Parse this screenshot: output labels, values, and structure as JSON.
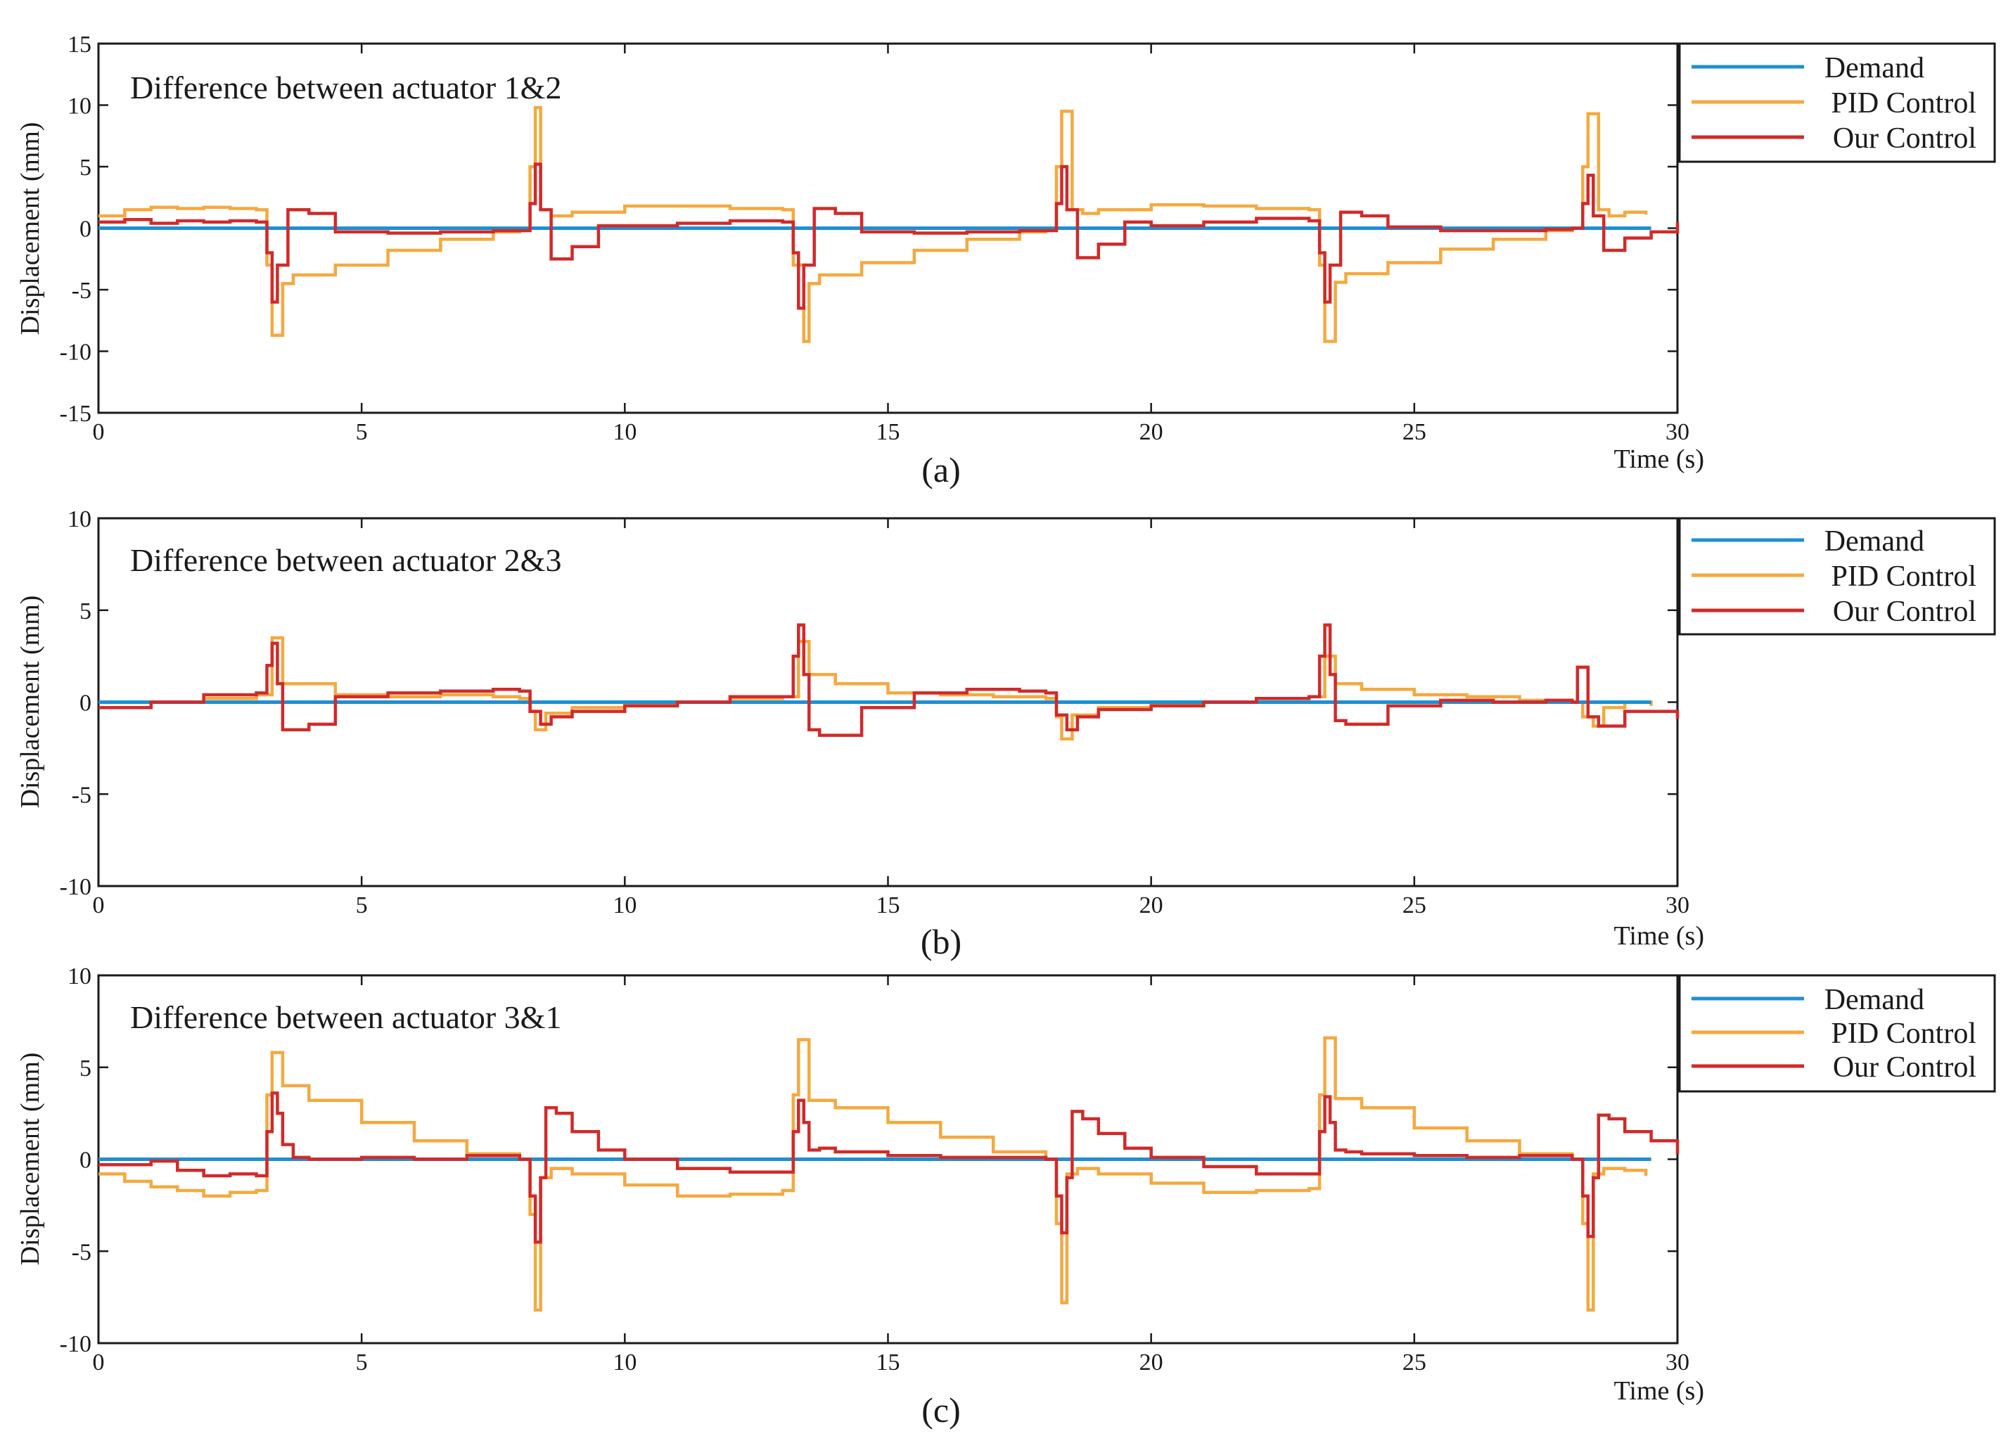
{
  "chart_data": [
    {
      "type": "line",
      "panel_label": "(a)",
      "title": "Difference between actuator 1&2",
      "xlabel": "Time (s)",
      "ylabel": "Displacement (mm)",
      "xlim": [
        0,
        30
      ],
      "ylim": [
        -15,
        15
      ],
      "xticks": [
        0,
        5,
        10,
        15,
        20,
        25,
        30
      ],
      "yticks": [
        -15,
        -10,
        -5,
        0,
        5,
        10,
        15
      ],
      "legend": [
        "Demand",
        "PID Control",
        "Our Control"
      ],
      "legend_position": "outside-top-right",
      "series": [
        {
          "name": "Demand",
          "color": "#1f8fd1",
          "x": [
            0,
            29.5
          ],
          "y": [
            0,
            0
          ]
        },
        {
          "name": "PID Control",
          "color": "#f4a93f",
          "x": [
            0,
            0.5,
            1,
            1.5,
            2,
            2.5,
            3.0,
            3.2,
            3.3,
            3.5,
            3.7,
            4.5,
            5.5,
            6.5,
            7.5,
            8.0,
            8.2,
            8.3,
            8.4,
            8.6,
            9,
            10,
            11,
            12,
            13.0,
            13.2,
            13.4,
            13.5,
            13.7,
            14.5,
            15.5,
            16.5,
            17.5,
            18.0,
            18.2,
            18.3,
            18.5,
            18.7,
            19,
            20,
            21,
            22,
            23.0,
            23.2,
            23.3,
            23.5,
            23.7,
            24.5,
            25.5,
            26.5,
            27.5,
            28.0,
            28.2,
            28.3,
            28.5,
            28.7,
            29,
            29.4
          ],
          "y": [
            1.0,
            1.5,
            1.7,
            1.6,
            1.7,
            1.6,
            1.5,
            -3,
            -8.7,
            -4.5,
            -3.8,
            -3.0,
            -1.8,
            -0.9,
            -0.3,
            0,
            5,
            9.8,
            1.5,
            1.0,
            1.3,
            1.8,
            1.8,
            1.6,
            1.5,
            -3,
            -9.2,
            -4.5,
            -3.8,
            -2.8,
            -1.8,
            -0.9,
            -0.3,
            0,
            5,
            9.5,
            1.5,
            1.2,
            1.5,
            1.9,
            1.8,
            1.6,
            1.5,
            -3,
            -9.2,
            -4.4,
            -3.7,
            -2.8,
            -1.7,
            -0.9,
            -0.2,
            0,
            5,
            9.3,
            1.5,
            1.0,
            1.3,
            1.1
          ]
        },
        {
          "name": "Our Control",
          "color": "#d12a2a",
          "x": [
            0,
            0.5,
            1,
            1.5,
            2,
            2.5,
            3.0,
            3.2,
            3.3,
            3.4,
            3.6,
            4.0,
            4.5,
            5.5,
            6.5,
            7.5,
            8.0,
            8.2,
            8.3,
            8.4,
            8.6,
            9,
            9.5,
            10,
            11,
            12,
            13.0,
            13.2,
            13.3,
            13.4,
            13.6,
            14,
            14.5,
            15.5,
            16.5,
            17.5,
            18.0,
            18.2,
            18.3,
            18.4,
            18.6,
            19,
            19.5,
            20,
            21,
            22,
            23.0,
            23.2,
            23.3,
            23.4,
            23.6,
            24,
            24.5,
            25.5,
            26.5,
            27.5,
            28.0,
            28.2,
            28.3,
            28.4,
            28.6,
            29,
            29.5,
            30
          ],
          "y": [
            0.5,
            0.7,
            0.4,
            0.6,
            0.5,
            0.6,
            0.5,
            -2,
            -6,
            -3,
            1.5,
            1.2,
            -0.3,
            -0.4,
            -0.3,
            -0.2,
            -0.2,
            2,
            5.2,
            1.5,
            -2.5,
            -1.5,
            0.2,
            0.2,
            0.4,
            0.6,
            0.5,
            -2,
            -6.5,
            -3,
            1.6,
            1.2,
            -0.3,
            -0.4,
            -0.3,
            -0.2,
            -0.2,
            2,
            5.0,
            1.5,
            -2.4,
            -1.3,
            0.5,
            0.2,
            0.5,
            0.8,
            0.6,
            -2,
            -6.0,
            -3,
            1.3,
            1.0,
            0.1,
            -0.2,
            -0.2,
            -0.1,
            0,
            2,
            4.3,
            1.0,
            -1.8,
            -0.8,
            -0.3,
            0.5
          ]
        }
      ]
    },
    {
      "type": "line",
      "panel_label": "(b)",
      "title": "Difference between actuator 2&3",
      "xlabel": "Time (s)",
      "ylabel": "Displacement (mm)",
      "xlim": [
        0,
        30
      ],
      "ylim": [
        -10,
        10
      ],
      "xticks": [
        0,
        5,
        10,
        15,
        20,
        25,
        30
      ],
      "yticks": [
        -10,
        -5,
        0,
        5,
        10
      ],
      "legend": [
        "Demand",
        "PID Control",
        "Our Control"
      ],
      "legend_position": "outside-top-right",
      "series": [
        {
          "name": "Demand",
          "color": "#1f8fd1",
          "x": [
            0,
            29.5
          ],
          "y": [
            0,
            0
          ]
        },
        {
          "name": "PID Control",
          "color": "#f4a93f",
          "x": [
            0,
            1,
            2,
            3.0,
            3.3,
            3.5,
            4.5,
            5.5,
            6.5,
            7.5,
            8.0,
            8.2,
            8.3,
            8.5,
            9,
            10,
            11,
            12,
            13.0,
            13.3,
            13.5,
            14,
            15,
            16,
            17,
            18.0,
            18.2,
            18.3,
            18.5,
            19,
            20,
            21,
            22,
            23.0,
            23.3,
            23.5,
            24,
            25,
            26,
            27,
            28.0,
            28.2,
            28.4,
            28.6,
            29,
            29.5
          ],
          "y": [
            -0.3,
            0,
            0.2,
            0.4,
            3.5,
            1.0,
            0.4,
            0.3,
            0.4,
            0.3,
            0.2,
            -0.5,
            -1.5,
            -0.6,
            -0.3,
            -0.1,
            0,
            0.2,
            0.3,
            3.3,
            1.5,
            1.0,
            0.5,
            0.4,
            0.3,
            0.2,
            -0.8,
            -2.0,
            -0.7,
            -0.3,
            -0.1,
            0,
            0.2,
            0.3,
            2.5,
            1.0,
            0.7,
            0.4,
            0.3,
            0.1,
            0,
            -0.8,
            -1.3,
            -0.3,
            0,
            -0.2
          ]
        },
        {
          "name": "Our Control",
          "color": "#d12a2a",
          "x": [
            0,
            1,
            2,
            3.0,
            3.2,
            3.3,
            3.4,
            3.5,
            4,
            4.5,
            5.5,
            6.5,
            7.5,
            8.0,
            8.2,
            8.4,
            8.6,
            9,
            10,
            11,
            12,
            13.0,
            13.2,
            13.3,
            13.4,
            13.5,
            13.7,
            14.5,
            15.5,
            16.5,
            17.5,
            18.0,
            18.2,
            18.4,
            18.6,
            19,
            20,
            21,
            22,
            23.0,
            23.2,
            23.3,
            23.4,
            23.5,
            23.7,
            24.5,
            25.5,
            26.5,
            27.5,
            28.0,
            28.1,
            28.3,
            28.5,
            29,
            29.5,
            30
          ],
          "y": [
            -0.3,
            0,
            0.4,
            0.5,
            2,
            3.2,
            1,
            -1.5,
            -1.2,
            0.3,
            0.5,
            0.6,
            0.7,
            0.6,
            -0.5,
            -1.2,
            -0.8,
            -0.5,
            -0.2,
            0,
            0.3,
            0.3,
            2.5,
            4.2,
            1.5,
            -1.5,
            -1.8,
            -0.3,
            0.5,
            0.7,
            0.6,
            0.5,
            -0.7,
            -1.5,
            -0.8,
            -0.4,
            -0.2,
            0,
            0.2,
            0.3,
            2.5,
            4.2,
            1.5,
            -1.0,
            -1.2,
            -0.2,
            0.1,
            0,
            0.1,
            0,
            1.9,
            -0.8,
            -1.3,
            -0.5,
            -0.5,
            -0.9
          ]
        }
      ]
    },
    {
      "type": "line",
      "panel_label": "(c)",
      "title": "Difference between actuator 3&1",
      "xlabel": "Time (s)",
      "ylabel": "Displacement (mm)",
      "xlim": [
        0,
        30
      ],
      "ylim": [
        -10,
        10
      ],
      "xticks": [
        0,
        5,
        10,
        15,
        20,
        25,
        30
      ],
      "yticks": [
        -10,
        -5,
        0,
        5,
        10
      ],
      "legend": [
        "Demand",
        "PID Control",
        "Our Control"
      ],
      "legend_position": "outside-top-right",
      "series": [
        {
          "name": "Demand",
          "color": "#1f8fd1",
          "x": [
            0,
            29.5
          ],
          "y": [
            0,
            0
          ]
        },
        {
          "name": "PID Control",
          "color": "#f4a93f",
          "x": [
            0,
            0.5,
            1,
            1.5,
            2,
            2.5,
            3.0,
            3.2,
            3.3,
            3.5,
            4,
            5,
            6,
            7,
            8.0,
            8.2,
            8.3,
            8.4,
            8.6,
            9,
            10,
            11,
            12,
            13.0,
            13.2,
            13.3,
            13.5,
            14,
            15,
            16,
            17,
            18.0,
            18.2,
            18.3,
            18.4,
            18.6,
            19,
            20,
            21,
            22,
            23.0,
            23.2,
            23.3,
            23.5,
            24,
            25,
            26,
            27,
            28.0,
            28.2,
            28.3,
            28.4,
            28.6,
            29,
            29.4
          ],
          "y": [
            -0.8,
            -1.2,
            -1.5,
            -1.7,
            -2.0,
            -1.8,
            -1.7,
            3.5,
            5.8,
            4.0,
            3.2,
            2.0,
            1.0,
            0.3,
            0,
            -3.0,
            -8.2,
            -1.0,
            -0.5,
            -0.8,
            -1.4,
            -2.0,
            -1.9,
            -1.7,
            3.5,
            6.5,
            3.2,
            2.8,
            2.0,
            1.2,
            0.4,
            0,
            -3.5,
            -7.8,
            -0.8,
            -0.5,
            -0.8,
            -1.3,
            -1.8,
            -1.7,
            -1.6,
            3.5,
            6.6,
            3.3,
            2.8,
            1.7,
            1.0,
            0.3,
            0,
            -3.5,
            -8.2,
            -0.8,
            -0.5,
            -0.6,
            -0.9
          ]
        },
        {
          "name": "Our Control",
          "color": "#d12a2a",
          "x": [
            0,
            0.5,
            1,
            1.5,
            2,
            2.5,
            3.0,
            3.2,
            3.3,
            3.4,
            3.5,
            3.7,
            4,
            5,
            6,
            7,
            8.0,
            8.2,
            8.3,
            8.4,
            8.5,
            8.7,
            9.0,
            9.5,
            10,
            11,
            12,
            13.0,
            13.2,
            13.3,
            13.4,
            13.5,
            13.7,
            14,
            15,
            16,
            17,
            18.0,
            18.2,
            18.3,
            18.4,
            18.5,
            18.7,
            19.0,
            19.5,
            20,
            21,
            22,
            23.0,
            23.2,
            23.3,
            23.4,
            23.5,
            23.7,
            24,
            25,
            26,
            27,
            28.0,
            28.2,
            28.3,
            28.4,
            28.5,
            28.7,
            29.0,
            29.5,
            30
          ],
          "y": [
            -0.3,
            -0.3,
            -0.1,
            -0.6,
            -0.9,
            -0.8,
            -0.9,
            1.5,
            3.6,
            2.5,
            0.8,
            0.1,
            0,
            0.1,
            0,
            0.2,
            0,
            -2.0,
            -4.5,
            -1.0,
            2.8,
            2.5,
            1.5,
            0.5,
            0,
            -0.5,
            -0.7,
            -0.7,
            1.5,
            3.2,
            2.0,
            0.5,
            0.6,
            0.4,
            0.2,
            0.1,
            0.1,
            0,
            -2.0,
            -4.0,
            -1.0,
            2.6,
            2.2,
            1.4,
            0.6,
            0.1,
            -0.4,
            -0.8,
            -0.8,
            1.5,
            3.4,
            2.0,
            0.5,
            0.4,
            0.3,
            0.2,
            0.1,
            0.2,
            0,
            -2.0,
            -4.2,
            -1.0,
            2.4,
            2.2,
            1.5,
            1.0,
            0.3
          ]
        }
      ]
    }
  ]
}
